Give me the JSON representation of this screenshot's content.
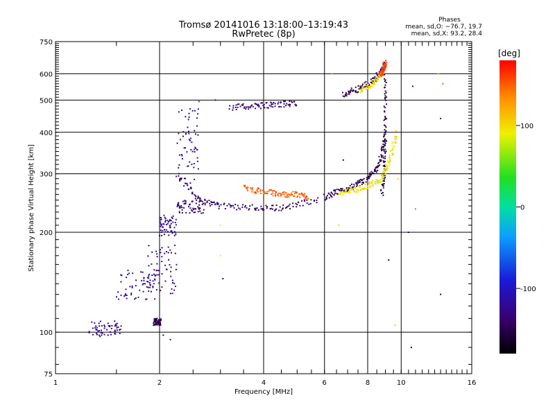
{
  "title": {
    "line1": "Tromsø 20141016 13:18:00–13:19:43",
    "line2": "RwPretec (8p)"
  },
  "phases": {
    "heading": "Phases",
    "line1": "mean, sd,O: −76.7, 19.7",
    "line2": "mean, sd,X:  93.2, 28.4"
  },
  "chart_data": {
    "type": "scatter",
    "title": "Tromsø 20141016 13:18:00–13:19:43 RwPretec (8p)",
    "xlabel": "Frequency [MHz]",
    "ylabel": "Stationary phase Virtual Height [km]",
    "x_scale": "log",
    "y_scale": "log",
    "xlim": [
      1,
      16
    ],
    "ylim": [
      75,
      750
    ],
    "x_ticks": [
      1,
      2,
      4,
      6,
      8,
      10,
      16
    ],
    "y_ticks": [
      75,
      100,
      200,
      300,
      400,
      500,
      600,
      750
    ],
    "grid": true,
    "colorbar": {
      "label": "[deg]",
      "range": [
        -180,
        180
      ],
      "ticks": [
        -100,
        0,
        100
      ]
    },
    "series": [
      {
        "kind": "blob",
        "f": [
          1.25,
          1.55
        ],
        "h": [
          97,
          108
        ],
        "phase": -130
      },
      {
        "kind": "blob",
        "f": [
          1.5,
          1.95
        ],
        "h": [
          125,
          155
        ],
        "phase": -120
      },
      {
        "kind": "blob",
        "f": [
          1.85,
          2.25
        ],
        "h": [
          130,
          185
        ],
        "phase": -125
      },
      {
        "kind": "blob",
        "f": [
          1.92,
          2.02
        ],
        "h": [
          105,
          110
        ],
        "phase": -150
      },
      {
        "kind": "blob",
        "f": [
          2.0,
          2.25
        ],
        "h": [
          195,
          225
        ],
        "phase": -120
      },
      {
        "kind": "blob",
        "f": [
          2.25,
          2.6
        ],
        "h": [
          280,
          480
        ],
        "phase": -118
      },
      {
        "kind": "blob",
        "f": [
          2.25,
          2.7
        ],
        "h": [
          228,
          250
        ],
        "phase": -135
      },
      {
        "kind": "curve",
        "f": [
          2.25,
          2.6,
          3.0,
          3.8,
          4.6,
          5.8
        ],
        "h": [
          300,
          250,
          240,
          237,
          237,
          252
        ],
        "phase": -140
      },
      {
        "kind": "curve",
        "f": [
          3.5,
          4.0,
          4.5,
          5.0,
          5.4
        ],
        "h": [
          272,
          265,
          260,
          260,
          256
        ],
        "phase": 150
      },
      {
        "kind": "curve",
        "f": [
          3.2,
          3.8,
          4.4,
          5.0
        ],
        "h": [
          475,
          480,
          485,
          490
        ],
        "phase": -135
      },
      {
        "kind": "curve",
        "f": [
          6.0,
          6.6,
          7.3,
          8.0,
          8.6,
          9.0
        ],
        "h": [
          255,
          265,
          275,
          290,
          315,
          390
        ],
        "phase": -150
      },
      {
        "kind": "curve",
        "f": [
          8.8,
          8.95,
          9.0,
          9.0
        ],
        "h": [
          260,
          320,
          420,
          600
        ],
        "phase": -155
      },
      {
        "kind": "curve",
        "f": [
          6.6,
          7.3,
          8.0,
          8.8,
          9.3,
          9.7
        ],
        "h": [
          263,
          268,
          275,
          290,
          330,
          400
        ],
        "phase": 95
      },
      {
        "kind": "curve",
        "f": [
          6.8,
          7.5,
          8.3,
          9.0
        ],
        "h": [
          520,
          540,
          570,
          640
        ],
        "phase": -150
      },
      {
        "kind": "curve",
        "f": [
          7.6,
          8.2,
          8.8
        ],
        "h": [
          530,
          560,
          600
        ],
        "phase": 100
      },
      {
        "kind": "curve",
        "f": [
          8.7,
          8.9,
          9.0
        ],
        "h": [
          590,
          620,
          650
        ],
        "phase": 160
      }
    ],
    "sparse_points": [
      {
        "f": 3.0,
        "h": 210,
        "phase": 90
      },
      {
        "f": 3.0,
        "h": 170,
        "phase": 100
      },
      {
        "f": 3.05,
        "h": 145,
        "phase": -150
      },
      {
        "f": 6.3,
        "h": 600,
        "phase": 150
      },
      {
        "f": 6.8,
        "h": 330,
        "phase": -160
      },
      {
        "f": 6.6,
        "h": 210,
        "phase": 100
      },
      {
        "f": 9.2,
        "h": 165,
        "phase": -160
      },
      {
        "f": 9.6,
        "h": 105,
        "phase": 100
      },
      {
        "f": 9.8,
        "h": 290,
        "phase": 100
      },
      {
        "f": 10.5,
        "h": 200,
        "phase": -150
      },
      {
        "f": 10.7,
        "h": 90,
        "phase": -140
      },
      {
        "f": 11.0,
        "h": 235,
        "phase": 150
      },
      {
        "f": 10.8,
        "h": 550,
        "phase": -150
      },
      {
        "f": 13.0,
        "h": 440,
        "phase": -150
      },
      {
        "f": 13.0,
        "h": 130,
        "phase": -150
      },
      {
        "f": 13.2,
        "h": 560,
        "phase": 150
      },
      {
        "f": 12.8,
        "h": 600,
        "phase": 60
      },
      {
        "f": 2.6,
        "h": 495,
        "phase": -60
      },
      {
        "f": 2.9,
        "h": 500,
        "phase": -140
      },
      {
        "f": 2.05,
        "h": 98,
        "phase": -150
      },
      {
        "f": 2.15,
        "h": 95,
        "phase": -130
      }
    ]
  }
}
